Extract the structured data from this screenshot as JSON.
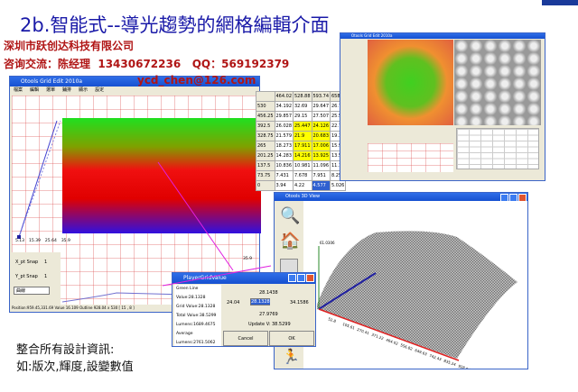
{
  "slide": {
    "title": "2b.智能式--導光趨勢的網格編輯介面",
    "company": "深圳市跃创达科技有限公司",
    "contact": "咨询交流：陈经理  13430672236   QQ：569192379",
    "email": "ycd_chen@126.com",
    "caption1": "整合所有設計資訊:",
    "caption2": "如:版次,輝度,設變數值"
  },
  "grid_edit": {
    "title": "Otools Grid Edit 2010a",
    "menu": [
      "檔案",
      "編輯",
      "選單",
      "鋪排",
      "顯示",
      "設定"
    ],
    "ticks": [
      "5.13",
      "15.39",
      "25.64",
      "35.9"
    ],
    "x_snap_label": "X_pt Snap",
    "x_snap": "1",
    "y_snap_label": "Y_pt Snap",
    "y_snap": "1",
    "mode": "曲線",
    "right_tick": "35.9",
    "status": "Position:959.45,331.69 Value 16.109 Outline 928.04 x 530 [ 15 , 8 ]",
    "table": {
      "cols": [
        "464.02",
        "528.88",
        "593.74",
        "658.6"
      ],
      "rows": [
        {
          "h": "530",
          "v": [
            "34.192",
            "32.69",
            "29.647",
            "26.78"
          ]
        },
        {
          "h": "456.25",
          "v": [
            "29.857",
            "29.15",
            "27.507",
            "25.59"
          ]
        },
        {
          "h": "392.5",
          "v": [
            "26.028",
            "25.447",
            "24.126",
            "22.71"
          ]
        },
        {
          "h": "328.75",
          "v": [
            "21.579",
            "21.9",
            "20.683",
            "19.33"
          ]
        },
        {
          "h": "265",
          "v": [
            "18.273",
            "17.911",
            "17.006",
            "15.98"
          ]
        },
        {
          "h": "201.25",
          "v": [
            "14.283",
            "14.216",
            "13.925",
            "13.55"
          ]
        },
        {
          "h": "137.5",
          "v": [
            "10.836",
            "10.981",
            "11.096",
            "11.17"
          ]
        },
        {
          "h": "73.75",
          "v": [
            "7.431",
            "7.678",
            "7.951",
            "8.251"
          ]
        },
        {
          "h": "0",
          "v": [
            "3.94",
            "4.22",
            "4.577",
            "5.026"
          ]
        }
      ]
    }
  },
  "dialog": {
    "title": "PlayerGridValue",
    "lines": [
      "Green Line Value:28.1328",
      "Grid Value:28.1328",
      "Total Value:38.5299",
      "Lumens:1689.4675",
      "Average Lumens:2761.5062"
    ],
    "top": "28.1438",
    "left": "24.04",
    "input": "28.1328",
    "right": "34.1586",
    "bottom": "27.9769",
    "update": "Update V: 38.5299",
    "cancel": "Cancel",
    "ok": "OK"
  },
  "view3d": {
    "title": "Otools 3D View",
    "z_label": "61.0306",
    "x_ticks": [
      "52.8",
      "105.61",
      "270.41",
      "371.22",
      "464.02",
      "556.82",
      "649.63",
      "742.43",
      "835.24",
      "928.04"
    ]
  },
  "grid_edit2": {
    "title": "Otools Grid Edit 2010a"
  }
}
